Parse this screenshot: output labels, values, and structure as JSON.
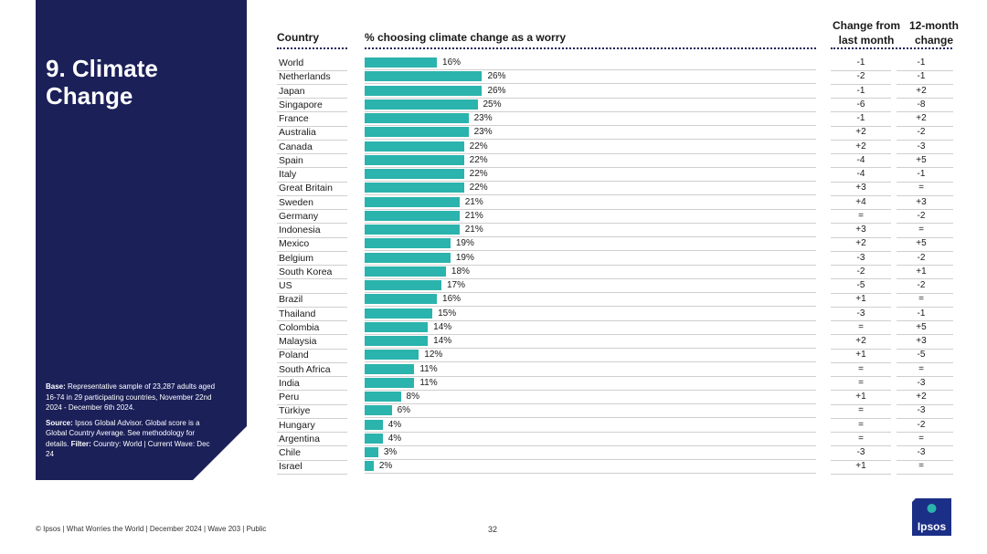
{
  "panel": {
    "title": "9. Climate Change",
    "base_label": "Base:",
    "base_text": "Representative sample of 23,287 adults aged 16-74 in 29 participating countries, November 22nd 2024 - December 6th 2024.",
    "source_label": "Source:",
    "source_text": "Ipsos Global Advisor. Global score is a Global Country Average. See methodology for details.",
    "filter_label": "Filter:",
    "filter_text": "Country: World | Current Wave: Dec 24"
  },
  "headers": {
    "country": "Country",
    "metric": "% choosing climate change as a worry",
    "change_month_l1": "Change from",
    "change_month_l2": "last month",
    "change_year_l1": "12-month",
    "change_year_l2": "change"
  },
  "chart_data": {
    "type": "bar",
    "orientation": "horizontal",
    "title": "% choosing climate change as a worry",
    "xlim": [
      0,
      100
    ],
    "value_suffix": "%",
    "rows": [
      {
        "country": "World",
        "value": 16,
        "change_month": "-1",
        "change_year": "-1"
      },
      {
        "country": "Netherlands",
        "value": 26,
        "change_month": "-2",
        "change_year": "-1"
      },
      {
        "country": "Japan",
        "value": 26,
        "change_month": "-1",
        "change_year": "+2"
      },
      {
        "country": "Singapore",
        "value": 25,
        "change_month": "-6",
        "change_year": "-8"
      },
      {
        "country": "France",
        "value": 23,
        "change_month": "-1",
        "change_year": "+2"
      },
      {
        "country": "Australia",
        "value": 23,
        "change_month": "+2",
        "change_year": "-2"
      },
      {
        "country": "Canada",
        "value": 22,
        "change_month": "+2",
        "change_year": "-3"
      },
      {
        "country": "Spain",
        "value": 22,
        "change_month": "-4",
        "change_year": "+5"
      },
      {
        "country": "Italy",
        "value": 22,
        "change_month": "-4",
        "change_year": "-1"
      },
      {
        "country": "Great Britain",
        "value": 22,
        "change_month": "+3",
        "change_year": "="
      },
      {
        "country": "Sweden",
        "value": 21,
        "change_month": "+4",
        "change_year": "+3"
      },
      {
        "country": "Germany",
        "value": 21,
        "change_month": "=",
        "change_year": "-2"
      },
      {
        "country": "Indonesia",
        "value": 21,
        "change_month": "+3",
        "change_year": "="
      },
      {
        "country": "Mexico",
        "value": 19,
        "change_month": "+2",
        "change_year": "+5"
      },
      {
        "country": "Belgium",
        "value": 19,
        "change_month": "-3",
        "change_year": "-2"
      },
      {
        "country": "South Korea",
        "value": 18,
        "change_month": "-2",
        "change_year": "+1"
      },
      {
        "country": "US",
        "value": 17,
        "change_month": "-5",
        "change_year": "-2"
      },
      {
        "country": "Brazil",
        "value": 16,
        "change_month": "+1",
        "change_year": "="
      },
      {
        "country": "Thailand",
        "value": 15,
        "change_month": "-3",
        "change_year": "-1"
      },
      {
        "country": "Colombia",
        "value": 14,
        "change_month": "=",
        "change_year": "+5"
      },
      {
        "country": "Malaysia",
        "value": 14,
        "change_month": "+2",
        "change_year": "+3"
      },
      {
        "country": "Poland",
        "value": 12,
        "change_month": "+1",
        "change_year": "-5"
      },
      {
        "country": "South Africa",
        "value": 11,
        "change_month": "=",
        "change_year": "="
      },
      {
        "country": "India",
        "value": 11,
        "change_month": "=",
        "change_year": "-3"
      },
      {
        "country": "Peru",
        "value": 8,
        "change_month": "+1",
        "change_year": "+2"
      },
      {
        "country": "Türkiye",
        "value": 6,
        "change_month": "=",
        "change_year": "-3"
      },
      {
        "country": "Hungary",
        "value": 4,
        "change_month": "=",
        "change_year": "-2"
      },
      {
        "country": "Argentina",
        "value": 4,
        "change_month": "=",
        "change_year": "="
      },
      {
        "country": "Chile",
        "value": 3,
        "change_month": "-3",
        "change_year": "-3"
      },
      {
        "country": "Israel",
        "value": 2,
        "change_month": "+1",
        "change_year": "="
      }
    ]
  },
  "colors": {
    "bar": "#2bb3ad",
    "panel": "#1b2059",
    "logo": "#1b2f86"
  },
  "footer": {
    "text": "© Ipsos | What Worries the World | December 2024 | Wave 203 | Public",
    "page": "32"
  },
  "logo": {
    "text": "Ipsos",
    "icon": "ipsos-logo-icon"
  }
}
